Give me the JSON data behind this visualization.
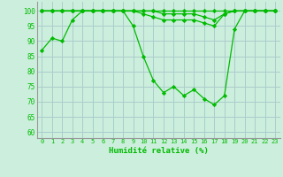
{
  "xlabel": "Humidité relative (%)",
  "bg_color": "#cceedd",
  "grid_color": "#aacccc",
  "line_color": "#00bb00",
  "marker_color": "#00bb00",
  "xlim": [
    -0.5,
    23.5
  ],
  "ylim": [
    58,
    103
  ],
  "yticks": [
    60,
    65,
    70,
    75,
    80,
    85,
    90,
    95,
    100
  ],
  "xticks": [
    0,
    1,
    2,
    3,
    4,
    5,
    6,
    7,
    8,
    9,
    10,
    11,
    12,
    13,
    14,
    15,
    16,
    17,
    18,
    19,
    20,
    21,
    22,
    23
  ],
  "series": [
    [
      87,
      91,
      90,
      97,
      100,
      100,
      100,
      100,
      100,
      95,
      85,
      77,
      73,
      75,
      72,
      74,
      71,
      69,
      72,
      94,
      100,
      100,
      100,
      100
    ],
    [
      100,
      100,
      100,
      100,
      100,
      100,
      100,
      100,
      100,
      100,
      100,
      100,
      100,
      100,
      100,
      100,
      100,
      100,
      100,
      100,
      100,
      100,
      100,
      100
    ],
    [
      100,
      100,
      100,
      100,
      100,
      100,
      100,
      100,
      100,
      100,
      100,
      100,
      99,
      99,
      99,
      99,
      98,
      97,
      99,
      100,
      100,
      100,
      100,
      100
    ],
    [
      100,
      100,
      100,
      100,
      100,
      100,
      100,
      100,
      100,
      100,
      99,
      98,
      97,
      97,
      97,
      97,
      96,
      95,
      99,
      100,
      100,
      100,
      100,
      100
    ]
  ]
}
